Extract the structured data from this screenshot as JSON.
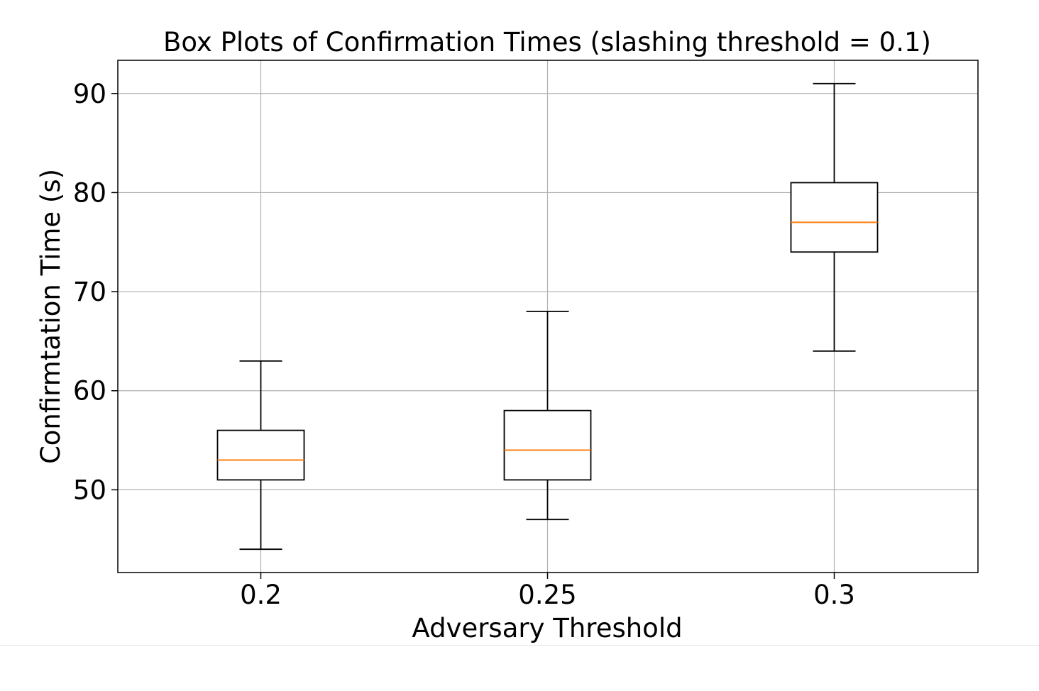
{
  "chart_data": {
    "type": "box",
    "title": "Box Plots of Confirmation Times (slashing threshold = 0.1)",
    "xlabel": "Adversary Threshold",
    "ylabel": "Confirmtation Time (s)",
    "categories": [
      "0.2",
      "0.25",
      "0.3"
    ],
    "boxes": [
      {
        "category": "0.2",
        "whisker_low": 44,
        "q1": 51,
        "median": 53,
        "q3": 56,
        "whisker_high": 63
      },
      {
        "category": "0.25",
        "whisker_low": 47,
        "q1": 51,
        "median": 54,
        "q3": 58,
        "whisker_high": 68
      },
      {
        "category": "0.3",
        "whisker_low": 64,
        "q1": 74,
        "median": 77,
        "q3": 81,
        "whisker_high": 91
      }
    ],
    "yticks": [
      50,
      60,
      70,
      80,
      90
    ],
    "ylim": [
      41.65,
      93.35
    ],
    "grid": true,
    "colors": {
      "box": "#000000",
      "median": "#ff7f0e",
      "grid": "#b0b0b0"
    }
  }
}
